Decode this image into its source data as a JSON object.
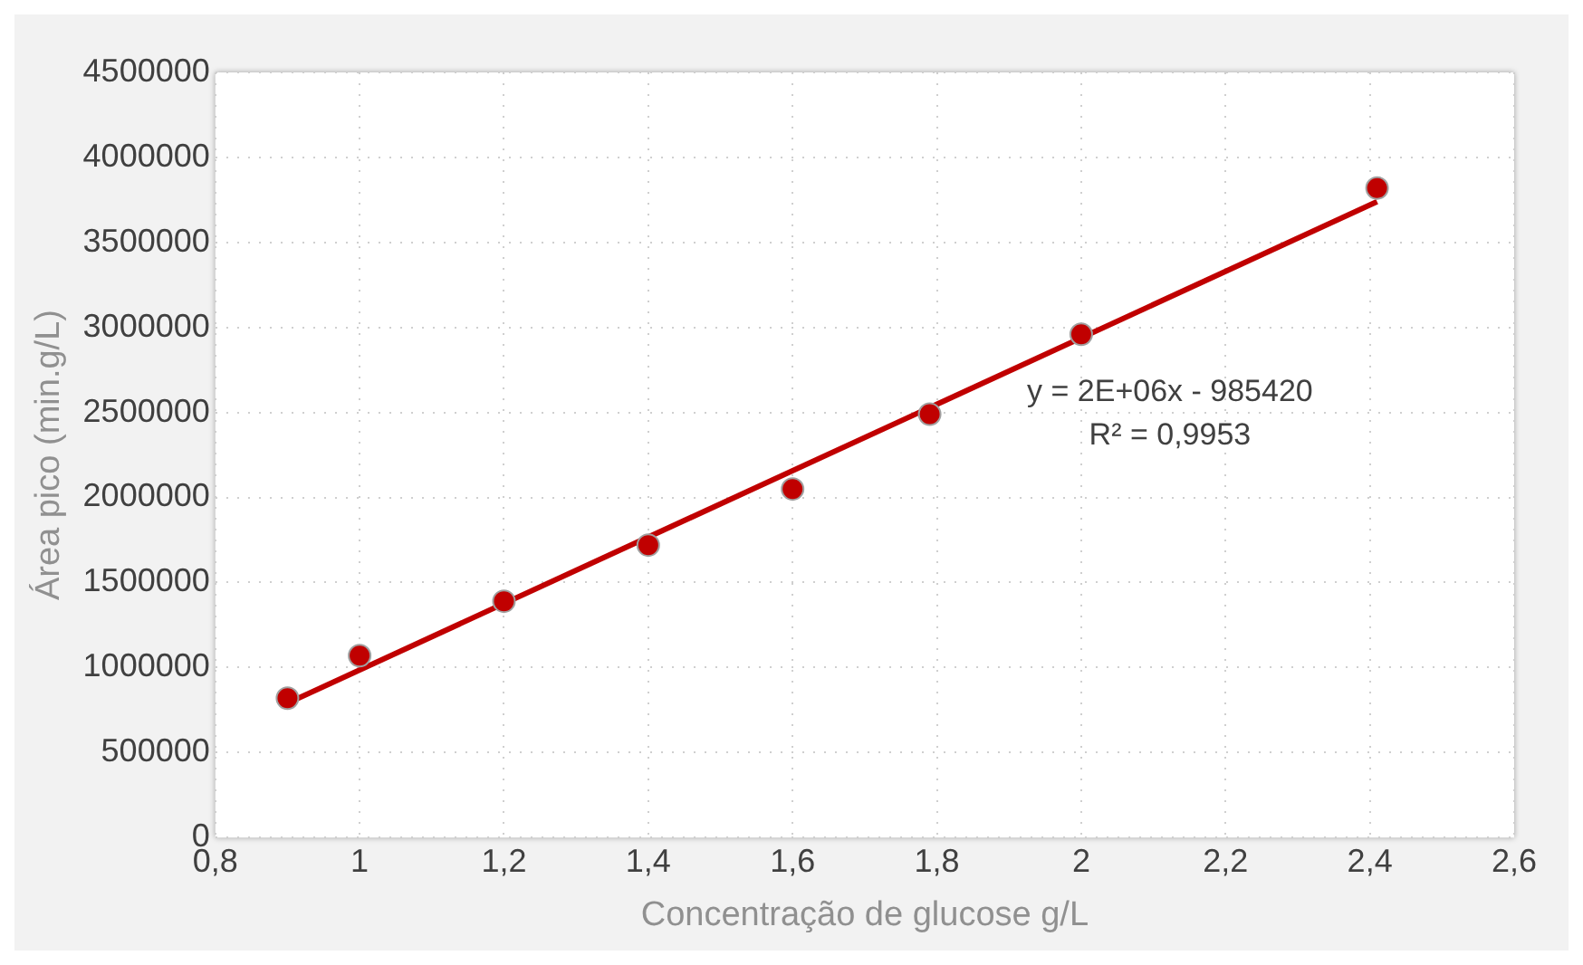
{
  "chart_data": {
    "type": "scatter",
    "xlabel": "Concentração de glucose g/L",
    "ylabel": "Área pico (min.g/L)",
    "series": [
      {
        "type": "scatter",
        "marker": "circle",
        "color": "#c00000",
        "x": [
          0.9,
          1.0,
          1.2,
          1.4,
          1.6,
          1.79,
          2.0,
          2.41
        ],
        "values": [
          820000,
          1070000,
          1390000,
          1720000,
          2050000,
          2490000,
          2960000,
          3820000
        ]
      },
      {
        "type": "line",
        "color": "#c00000",
        "x": [
          0.9,
          2.41
        ],
        "values": [
          790000,
          3740000
        ]
      }
    ],
    "xlim": [
      0.8,
      2.6
    ],
    "xticks": [
      {
        "value": 0.8,
        "label": "0,8"
      },
      1,
      {
        "value": 1.2,
        "label": "1,2"
      },
      {
        "value": 1.4,
        "label": "1,4"
      },
      {
        "value": 1.6,
        "label": "1,6"
      },
      {
        "value": 1.8,
        "label": "1,8"
      },
      2,
      {
        "value": 2.2,
        "label": "2,2"
      },
      {
        "value": 2.4,
        "label": "2,4"
      },
      {
        "value": 2.6,
        "label": "2,6"
      }
    ],
    "ylim": [
      0,
      4500000
    ],
    "yticks": [
      0,
      500000,
      1000000,
      1500000,
      2000000,
      2500000,
      3000000,
      3500000,
      4000000,
      4500000
    ],
    "grid": true,
    "line_style": "solid",
    "annotations": [
      "y = 2E+06x - 985420",
      "R² = 0,9953"
    ]
  }
}
